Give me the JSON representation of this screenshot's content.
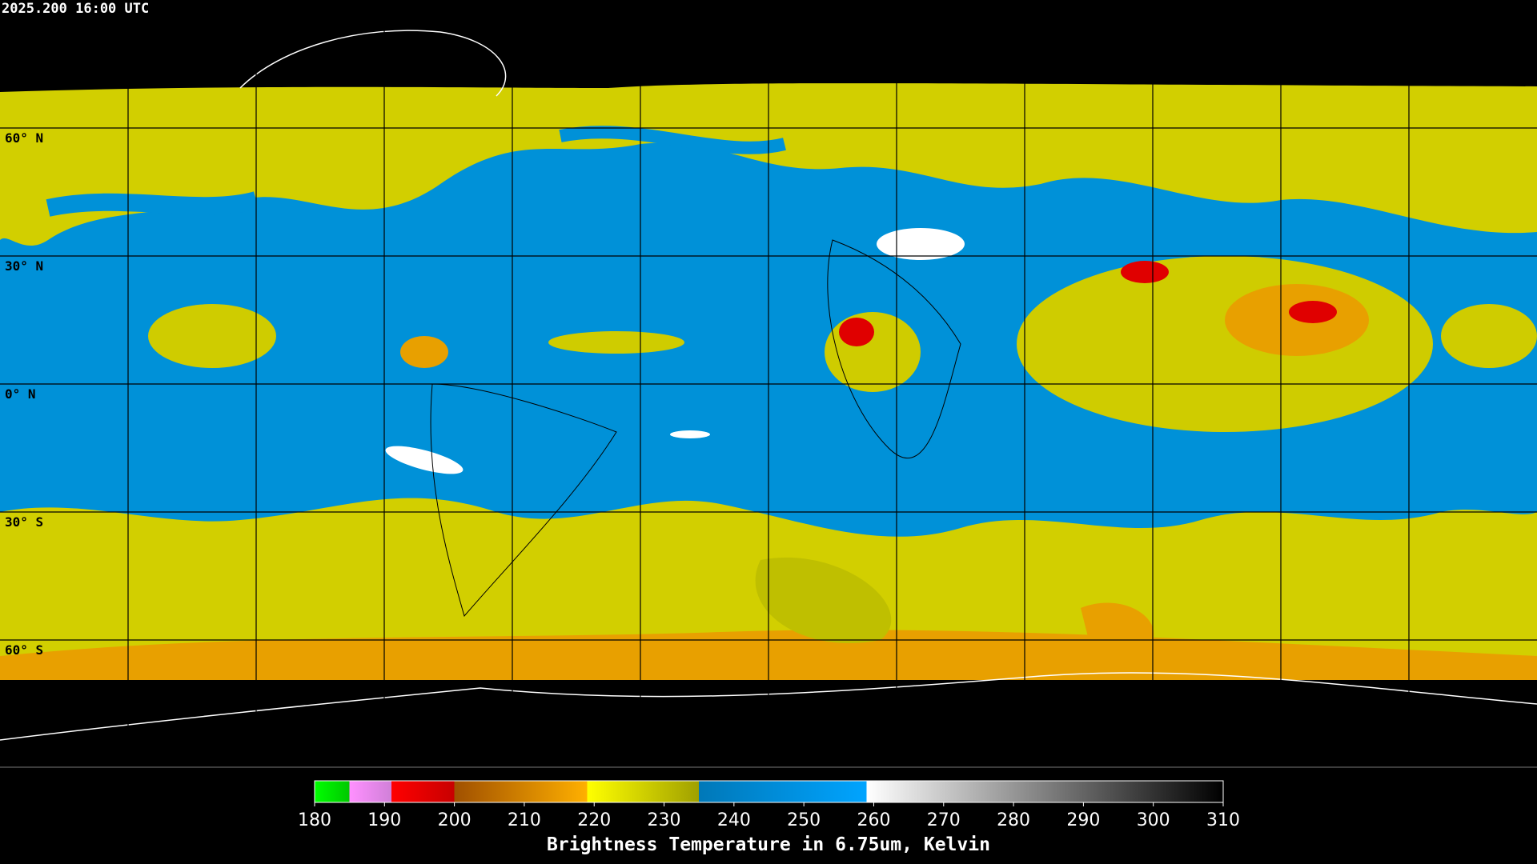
{
  "title": "2025.200 16:00 UTC",
  "map": {
    "latitude_labels": [
      {
        "value": 60,
        "label": "60° N"
      },
      {
        "value": 30,
        "label": "30° N"
      },
      {
        "value": 0,
        "label": "0° N"
      },
      {
        "value": -30,
        "label": "30° S"
      },
      {
        "value": -60,
        "label": "60° S"
      }
    ]
  },
  "colorbar": {
    "label": "Brightness Temperature in 6.75um, Kelvin",
    "range": [
      180,
      310
    ],
    "ticks": [
      180,
      190,
      200,
      210,
      220,
      230,
      240,
      250,
      260,
      270,
      280,
      290,
      300,
      310
    ],
    "stops": [
      {
        "value": 180,
        "color": "#00ff00"
      },
      {
        "value": 185,
        "color": "#00c800"
      },
      {
        "value": 185,
        "color": "#ff90ff"
      },
      {
        "value": 191,
        "color": "#d080d8"
      },
      {
        "value": 191,
        "color": "#ff0000"
      },
      {
        "value": 200,
        "color": "#c80000"
      },
      {
        "value": 200,
        "color": "#a05000"
      },
      {
        "value": 219,
        "color": "#ffb000"
      },
      {
        "value": 219,
        "color": "#ffff00"
      },
      {
        "value": 235,
        "color": "#a0a000"
      },
      {
        "value": 235,
        "color": "#0078b8"
      },
      {
        "value": 259,
        "color": "#00a4ff"
      },
      {
        "value": 259,
        "color": "#ffffff"
      },
      {
        "value": 310,
        "color": "#000000"
      }
    ]
  }
}
